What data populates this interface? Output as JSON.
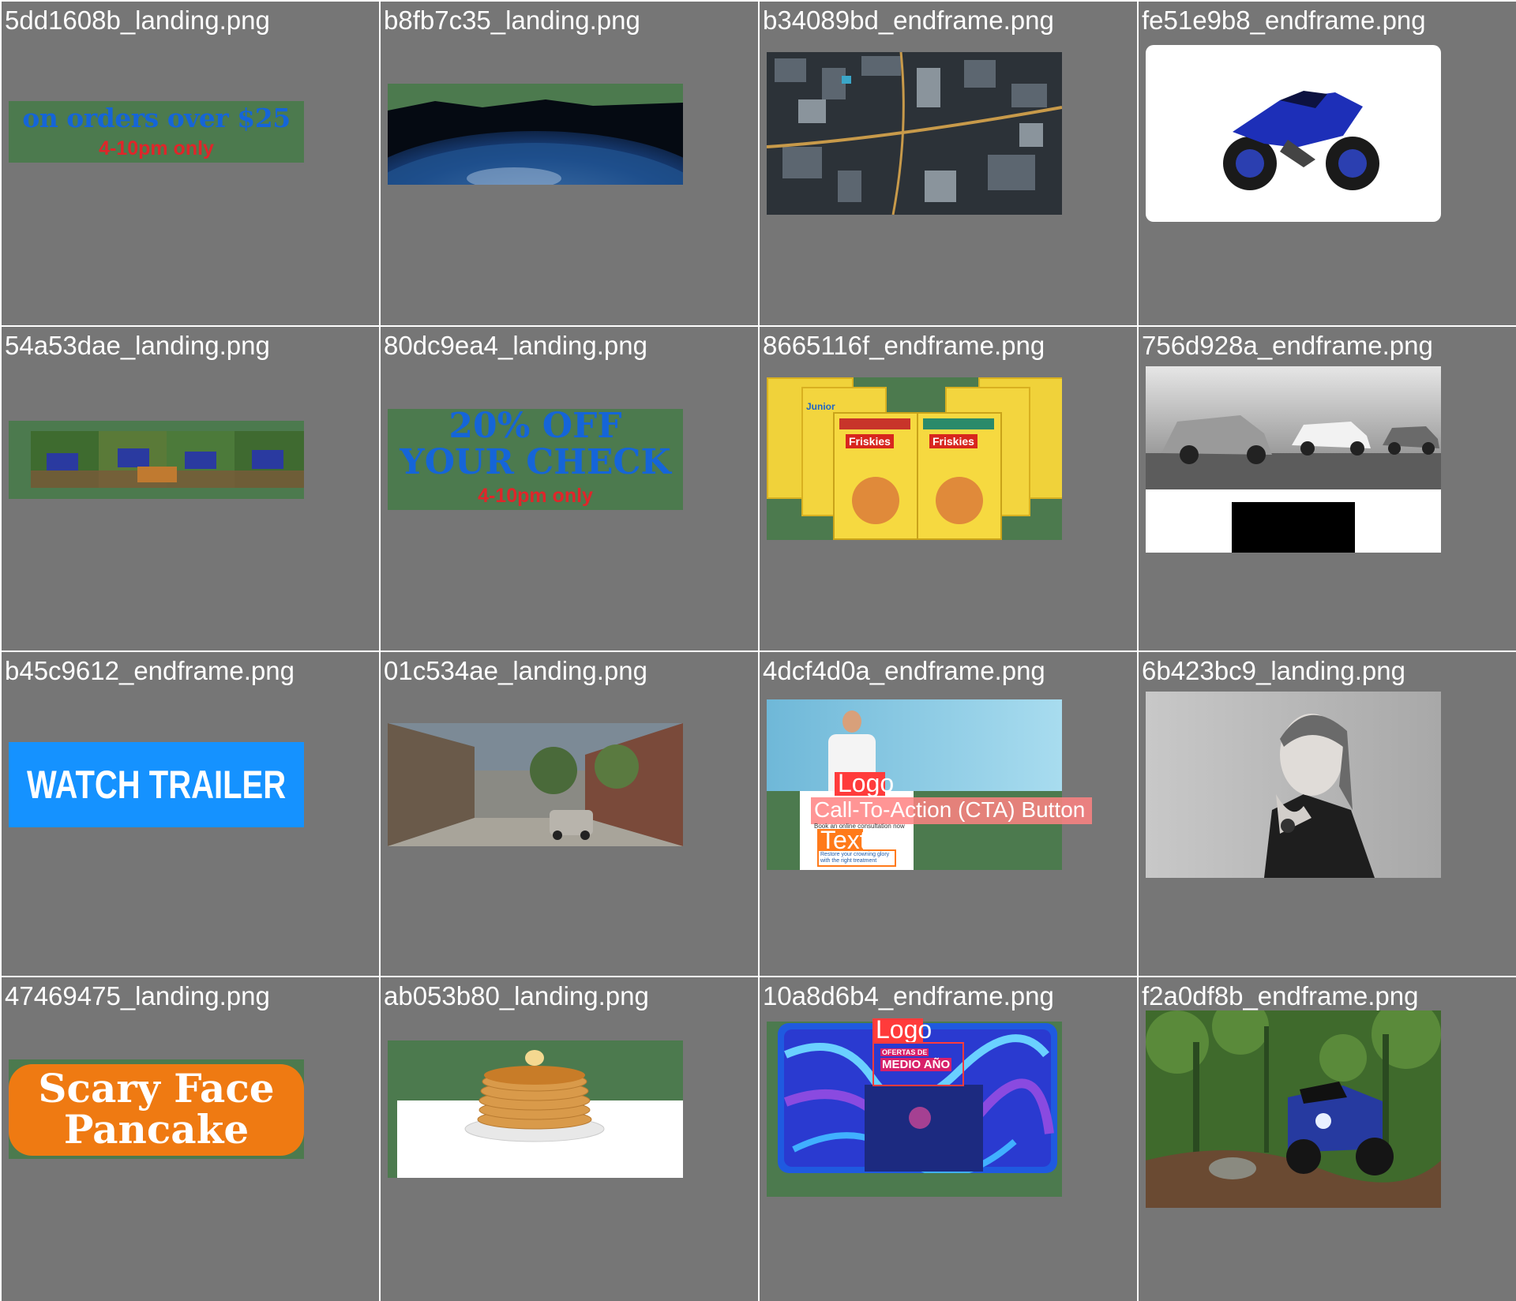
{
  "tiles": [
    {
      "caption": "5dd1608b_landing.png",
      "line1": "on orders over $25",
      "line2": "4-10pm only"
    },
    {
      "caption": "b8fb7c35_landing.png"
    },
    {
      "caption": "b34089bd_endframe.png"
    },
    {
      "caption": "fe51e9b8_endframe.png"
    },
    {
      "caption": "54a53dae_landing.png"
    },
    {
      "caption": "80dc9ea4_landing.png",
      "line1": "20% OFF",
      "line2": "YOUR CHECK",
      "line3": "4-10pm only"
    },
    {
      "caption": "8665116f_endframe.png",
      "brand": "Friskies",
      "brand_tag": "Junior"
    },
    {
      "caption": "756d928a_endframe.png"
    },
    {
      "caption": "b45c9612_endframe.png",
      "button": "WATCH TRAILER"
    },
    {
      "caption": "01c534ae_landing.png"
    },
    {
      "caption": "4dcf4d0a_endframe.png",
      "logo_label": "Logo",
      "cta_label": "Call-To-Action (CTA) Button",
      "cta_text": "Book an online consultation now",
      "text_label": "Text",
      "body_text": "Restore your crowning glory with the right treatment"
    },
    {
      "caption": "6b423bc9_landing.png"
    },
    {
      "caption": "47469475_landing.png",
      "line1": "Scary Face",
      "line2": "Pancake"
    },
    {
      "caption": "ab053b80_landing.png"
    },
    {
      "caption": "10a8d6b4_endframe.png",
      "logo_label": "Logo",
      "promo1": "OFERTAS DE",
      "promo2": "MEDIO AÑO"
    },
    {
      "caption": "f2a0df8b_endframe.png"
    }
  ],
  "colors": {
    "cell_bg": "#767676",
    "placeholder_green": "#4c7a4e",
    "red_text": "#e0252a",
    "blue_text": "#1565d8",
    "trailer_blue": "#1592ff",
    "orange": "#ef7a12"
  }
}
